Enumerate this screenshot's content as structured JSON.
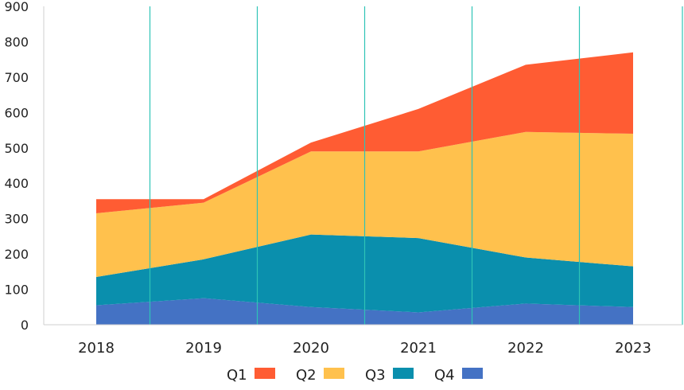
{
  "chart_data": {
    "type": "area",
    "stacked": true,
    "categories": [
      "2018",
      "2019",
      "2020",
      "2021",
      "2022",
      "2023"
    ],
    "ylim": [
      0,
      900
    ],
    "yticks": [
      0,
      100,
      200,
      300,
      400,
      500,
      600,
      700,
      800,
      900
    ],
    "grid": "vertical",
    "legend_position": "bottom",
    "series": [
      {
        "name": "Q4",
        "color": "#4472C4",
        "values": [
          55,
          75,
          50,
          35,
          60,
          50
        ]
      },
      {
        "name": "Q3",
        "color": "#0A8FAD",
        "values": [
          80,
          110,
          205,
          210,
          130,
          115
        ]
      },
      {
        "name": "Q2",
        "color": "#FFC14D",
        "values": [
          180,
          160,
          235,
          245,
          355,
          375
        ]
      },
      {
        "name": "Q1",
        "color": "#FF5C33",
        "values": [
          40,
          10,
          25,
          120,
          190,
          230
        ]
      }
    ],
    "legend_order": [
      "Q1",
      "Q2",
      "Q3",
      "Q4"
    ]
  }
}
